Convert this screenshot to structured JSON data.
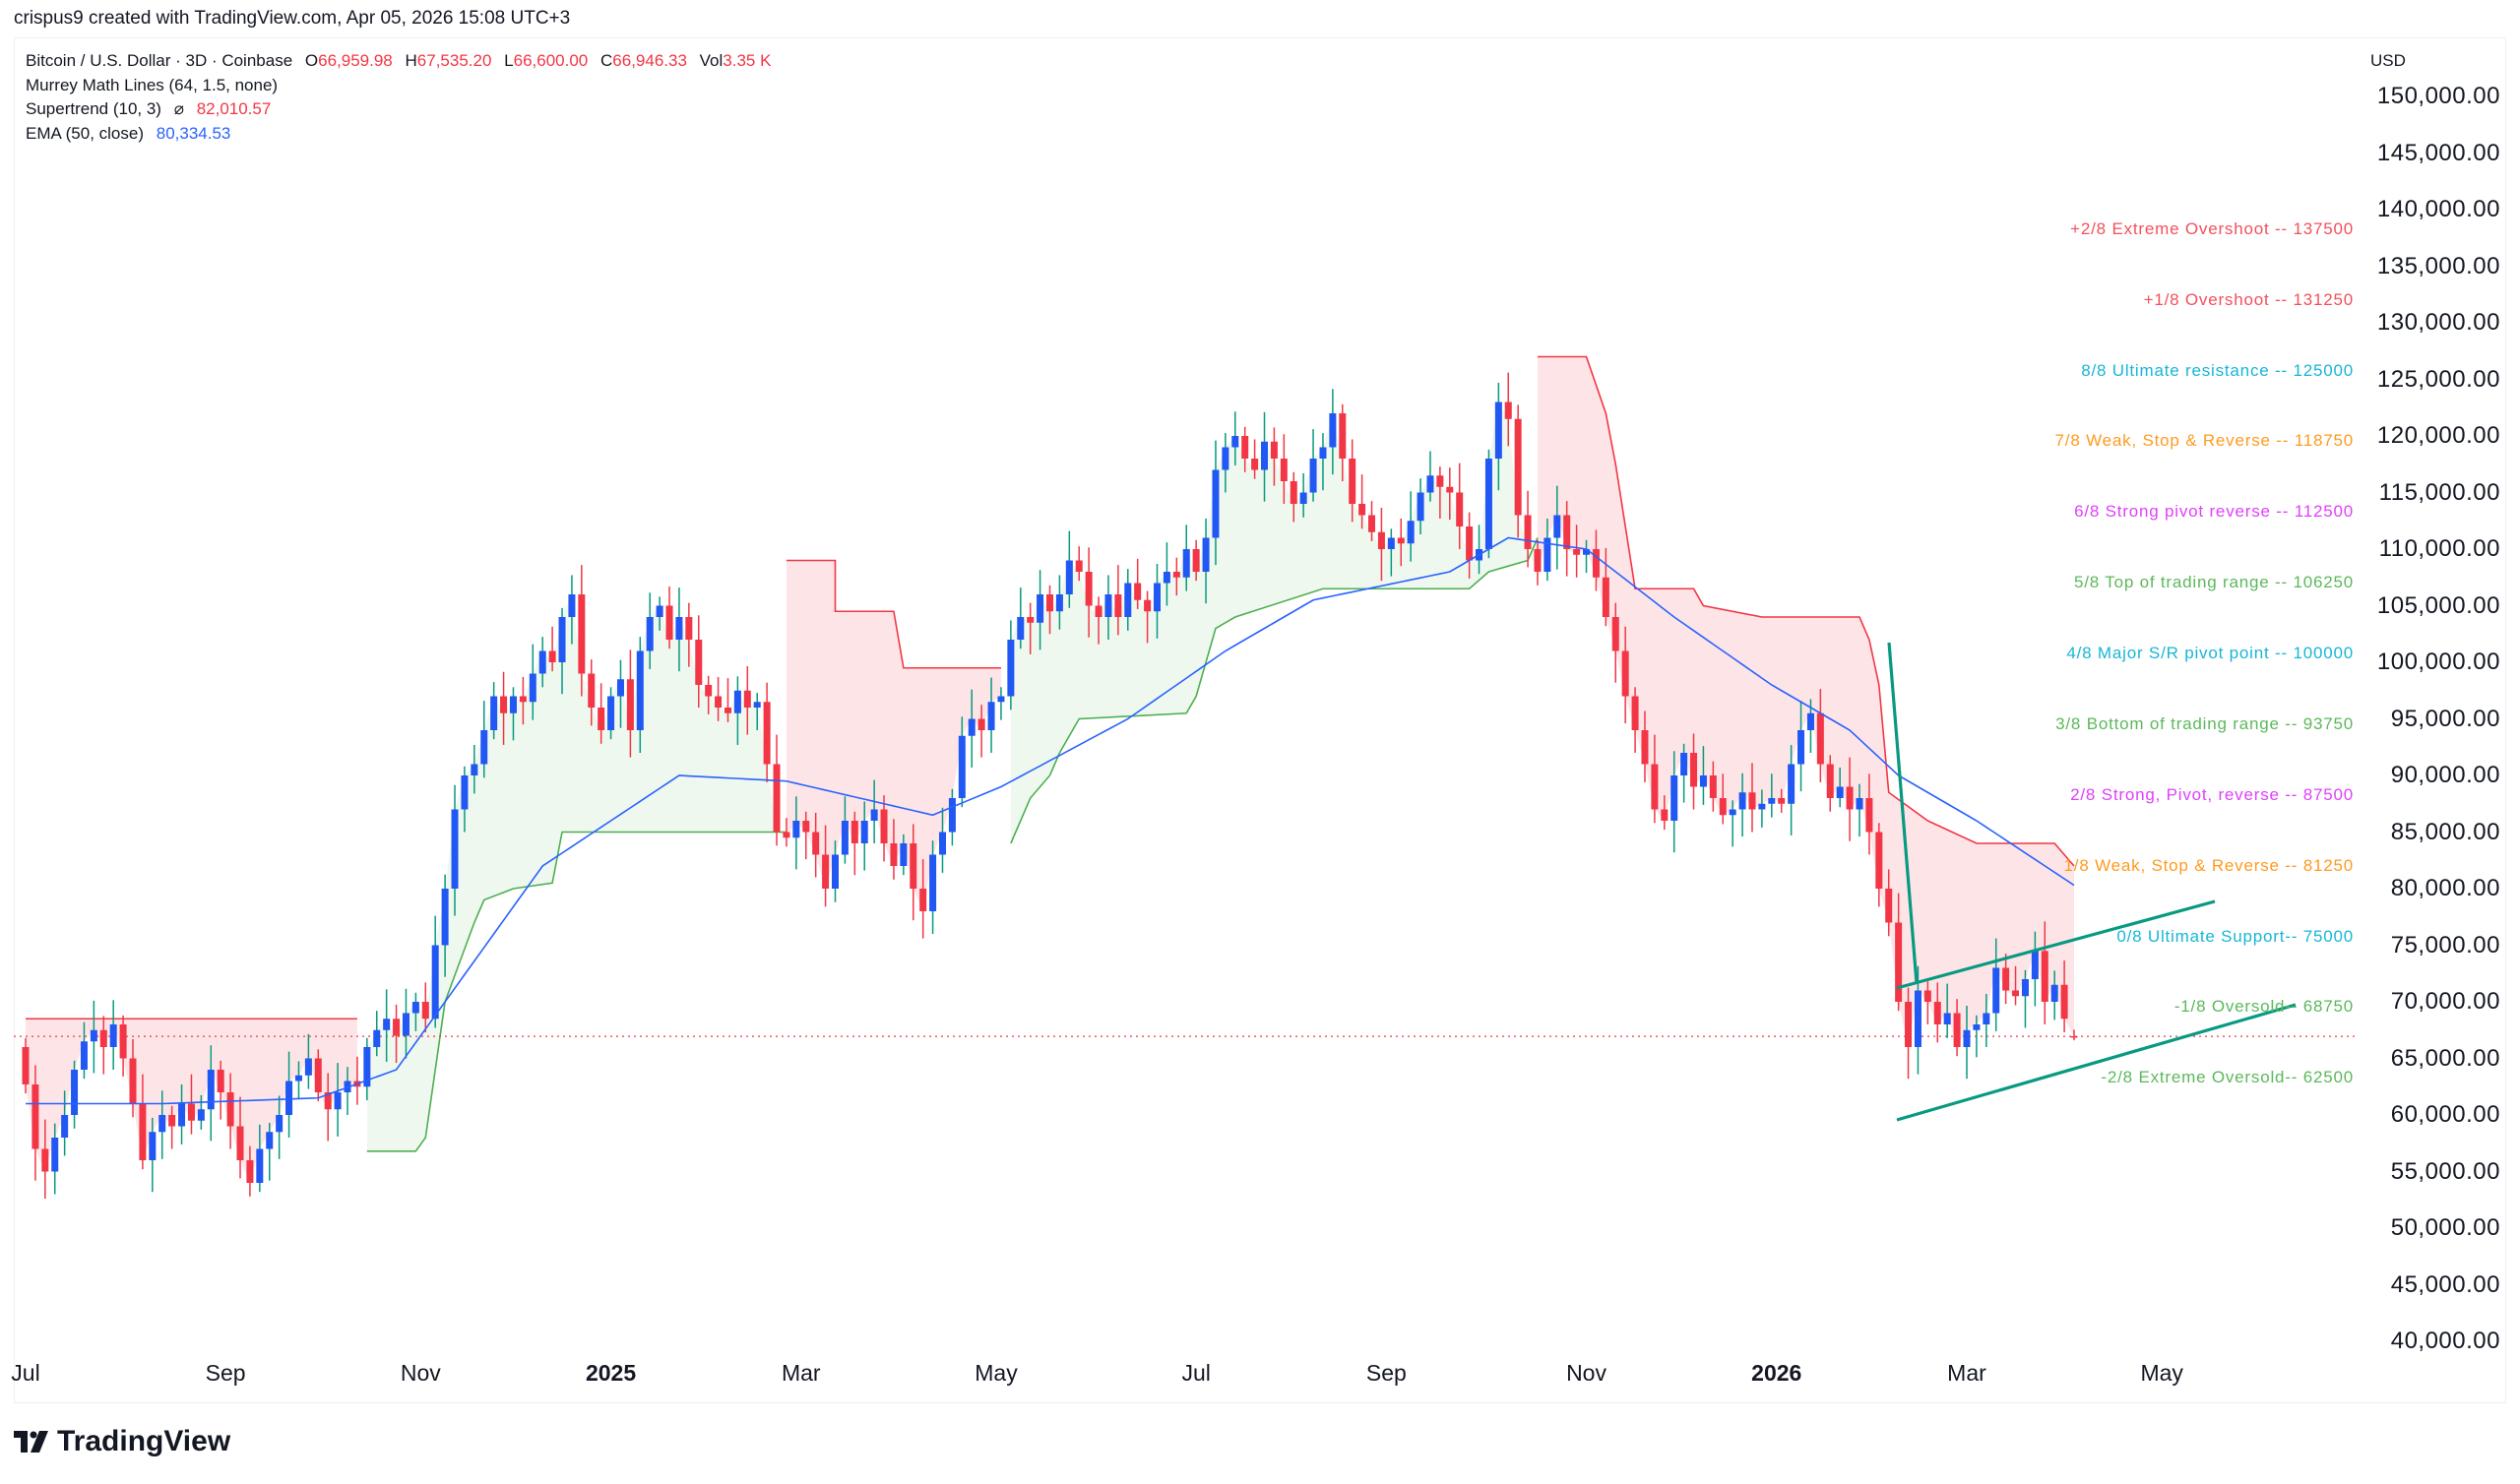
{
  "credit": "crispus9 created with TradingView.com, Apr 05, 2026 15:08 UTC+3",
  "legend": {
    "symbol": "Bitcoin / U.S. Dollar · 3D · Coinbase",
    "o_label": "O",
    "o": "66,959.98",
    "h_label": "H",
    "h": "67,535.20",
    "l_label": "L",
    "l": "66,600.00",
    "c_label": "C",
    "c": "66,946.33",
    "vol_label": "Vol",
    "vol": "3.35 K",
    "murrey": "Murrey Math Lines (64, 1.5, none)",
    "supertrend": "Supertrend (10, 3)",
    "supertrend_sym": "⌀",
    "supertrend_val": "82,010.57",
    "ema": "EMA (50, close)",
    "ema_val": "80,334.53"
  },
  "logo_text": "TradingView",
  "chart_data": {
    "type": "candlestick",
    "currency": "USD",
    "unit_note": "prices in thousands USD",
    "ylim": [
      40000,
      150000
    ],
    "y_ticks": [
      "150,000.00",
      "145,000.00",
      "140,000.00",
      "135,000.00",
      "130,000.00",
      "125,000.00",
      "120,000.00",
      "115,000.00",
      "110,000.00",
      "105,000.00",
      "100,000.00",
      "95,000.00",
      "90,000.00",
      "85,000.00",
      "80,000.00",
      "75,000.00",
      "70,000.00",
      "65,000.00",
      "60,000.00",
      "55,000.00",
      "50,000.00",
      "45,000.00",
      "40,000.00"
    ],
    "x_ticks": [
      {
        "label": "Jul",
        "bold": false,
        "index": 0
      },
      {
        "label": "Sep",
        "bold": false,
        "index": 20.5
      },
      {
        "label": "Nov",
        "bold": false,
        "index": 40.5
      },
      {
        "label": "2025",
        "bold": true,
        "index": 60
      },
      {
        "label": "Mar",
        "bold": false,
        "index": 79.5
      },
      {
        "label": "May",
        "bold": false,
        "index": 99.5
      },
      {
        "label": "Jul",
        "bold": false,
        "index": 120
      },
      {
        "label": "Sep",
        "bold": false,
        "index": 139.5
      },
      {
        "label": "Nov",
        "bold": false,
        "index": 160
      },
      {
        "label": "2026",
        "bold": true,
        "index": 179.5
      },
      {
        "label": "Mar",
        "bold": false,
        "index": 199
      },
      {
        "label": "May",
        "bold": false,
        "index": 219
      }
    ],
    "closes": [
      62.7,
      57,
      55,
      58,
      60,
      64,
      66.5,
      67.5,
      66,
      68,
      65,
      61,
      56,
      58.5,
      60,
      59,
      61,
      59.5,
      60.5,
      64,
      62,
      59,
      56,
      54,
      57,
      58.5,
      60,
      63,
      63.5,
      65,
      62,
      60.5,
      62,
      63,
      62.5,
      66,
      67.5,
      68.5,
      67,
      69,
      70,
      68.5,
      75,
      80,
      87,
      90,
      91,
      94,
      97,
      95.5,
      97,
      96.5,
      99,
      101,
      100,
      104,
      106,
      99,
      96,
      94,
      97,
      98.5,
      94,
      101,
      104,
      105,
      102,
      104,
      102,
      98,
      97,
      96,
      95.5,
      97.5,
      96,
      96.5,
      91,
      85,
      84.5,
      86,
      85,
      83,
      80,
      83,
      86,
      84,
      86,
      87,
      84,
      82,
      84,
      80,
      78,
      83,
      85,
      88,
      93.5,
      95,
      94,
      96.5,
      97,
      102,
      104,
      103.5,
      106,
      104.5,
      106,
      109,
      108,
      105,
      104,
      106,
      104,
      107,
      105.5,
      104.5,
      107,
      108,
      107.5,
      110,
      108,
      111,
      117,
      119,
      120,
      118,
      117,
      119.5,
      118,
      116,
      114,
      115,
      118,
      119,
      122,
      118,
      114,
      113,
      111.5,
      110,
      111,
      110.5,
      112.5,
      115,
      116.5,
      115.5,
      115,
      112,
      109,
      110,
      118,
      123,
      121.5,
      113,
      110,
      108,
      111,
      113,
      110,
      109.5,
      110,
      107.5,
      104,
      101,
      97,
      94,
      91,
      87,
      86,
      90,
      92,
      89,
      90,
      88,
      86.5,
      87,
      88.5,
      87,
      87.5,
      88,
      87.5,
      91,
      94,
      95.5,
      91,
      88,
      89,
      87,
      88,
      85,
      80,
      77,
      70,
      66,
      71,
      70,
      68,
      69,
      66,
      67.5,
      68,
      69,
      73,
      71,
      70.5,
      72,
      74.5,
      70,
      71.5,
      68.5,
      66.946
    ],
    "last_candle": {
      "open": 66959.98,
      "high": 67535.2,
      "low": 66600.0,
      "close": 66946.33
    },
    "current_price": 66946.33,
    "supertrend": [
      {
        "direction": "down",
        "points": [
          [
            0,
            68.5
          ],
          [
            34,
            68.5
          ]
        ]
      },
      {
        "direction": "up",
        "points": [
          [
            35,
            56.8
          ],
          [
            40,
            56.8
          ],
          [
            41,
            58
          ],
          [
            43,
            70
          ],
          [
            46,
            77
          ],
          [
            47,
            79
          ],
          [
            50,
            80
          ],
          [
            54,
            80.5
          ],
          [
            55,
            85
          ],
          [
            78,
            85
          ]
        ]
      },
      {
        "direction": "down",
        "points": [
          [
            78,
            109
          ],
          [
            83,
            109
          ],
          [
            83,
            104.5
          ],
          [
            89,
            104.5
          ],
          [
            90,
            99.5
          ],
          [
            100,
            99.5
          ]
        ]
      },
      {
        "direction": "up",
        "points": [
          [
            101,
            84
          ],
          [
            103,
            88
          ],
          [
            105,
            90
          ],
          [
            106,
            92
          ],
          [
            108,
            95
          ],
          [
            119,
            95.5
          ],
          [
            120,
            97
          ],
          [
            122,
            103
          ],
          [
            124,
            104
          ],
          [
            133,
            106.5
          ],
          [
            148,
            106.5
          ],
          [
            150,
            108
          ],
          [
            154,
            109
          ],
          [
            155,
            111
          ]
        ]
      },
      {
        "direction": "down",
        "points": [
          [
            155,
            127
          ],
          [
            160,
            127
          ],
          [
            162,
            122
          ],
          [
            163,
            117.5
          ],
          [
            165,
            106.5
          ],
          [
            171,
            106.5
          ],
          [
            172,
            105
          ],
          [
            178,
            104
          ],
          [
            188,
            104
          ],
          [
            189,
            102
          ],
          [
            190,
            98
          ],
          [
            191,
            88.5
          ],
          [
            195,
            86
          ],
          [
            200,
            84
          ],
          [
            208,
            84
          ],
          [
            209,
            83
          ],
          [
            210,
            82
          ]
        ]
      }
    ],
    "ema50": [
      [
        0,
        61
      ],
      [
        14,
        61
      ],
      [
        30,
        61.5
      ],
      [
        38,
        64
      ],
      [
        43,
        70
      ],
      [
        53,
        82
      ],
      [
        67,
        90
      ],
      [
        78,
        89.5
      ],
      [
        93,
        86.5
      ],
      [
        100,
        89
      ],
      [
        113,
        95
      ],
      [
        123,
        101
      ],
      [
        132,
        105.5
      ],
      [
        146,
        108
      ],
      [
        152,
        111
      ],
      [
        160,
        110
      ],
      [
        169,
        104
      ],
      [
        179,
        98
      ],
      [
        187,
        94
      ],
      [
        192,
        90
      ],
      [
        200,
        86
      ],
      [
        210,
        80.3
      ]
    ],
    "murrey_lines": [
      {
        "label": "+2/8 Extreme Overshoot --  137500",
        "level": 137500,
        "color": "#f44f5c"
      },
      {
        "label": "+1/8 Overshoot --  131250",
        "level": 131250,
        "color": "#f44f5c"
      },
      {
        "label": "8/8 Ultimate resistance --  125000",
        "level": 125000,
        "color": "#17b6d6"
      },
      {
        "label": "7/8 Weak, Stop & Reverse --  118750",
        "level": 118750,
        "color": "#ff9a1f"
      },
      {
        "label": "6/8 Strong pivot reverse --  112500",
        "level": 112500,
        "color": "#e040fb"
      },
      {
        "label": "5/8 Top of trading range --  106250",
        "level": 106250,
        "color": "#5cb85c"
      },
      {
        "label": "4/8 Major S/R pivot point --  100000",
        "level": 100000,
        "color": "#17b6d6"
      },
      {
        "label": "3/8 Bottom of trading range --  93750",
        "level": 93750,
        "color": "#5cb85c"
      },
      {
        "label": "2/8 Strong, Pivot, reverse --  87500",
        "level": 87500,
        "color": "#e040fb"
      },
      {
        "label": "1/8 Weak, Stop & Reverse --  81250",
        "level": 81250,
        "color": "#ff9a1f"
      },
      {
        "label": "0/8 Ultimate Support--  75000",
        "level": 75000,
        "color": "#17b6d6"
      },
      {
        "label": "-1/8 Oversold--  68750",
        "level": 68750,
        "color": "#5cb85c"
      },
      {
        "label": "-2/8 Extreme Oversold--  62500",
        "level": 62500,
        "color": "#5cb85c"
      }
    ],
    "colors": {
      "up_body": "#2157f3",
      "up_wick": "#089981",
      "down": "#f23645",
      "ema": "#2962ff",
      "st_up": "#4caf50",
      "st_down": "#f23645",
      "trendline": "#089981"
    }
  }
}
